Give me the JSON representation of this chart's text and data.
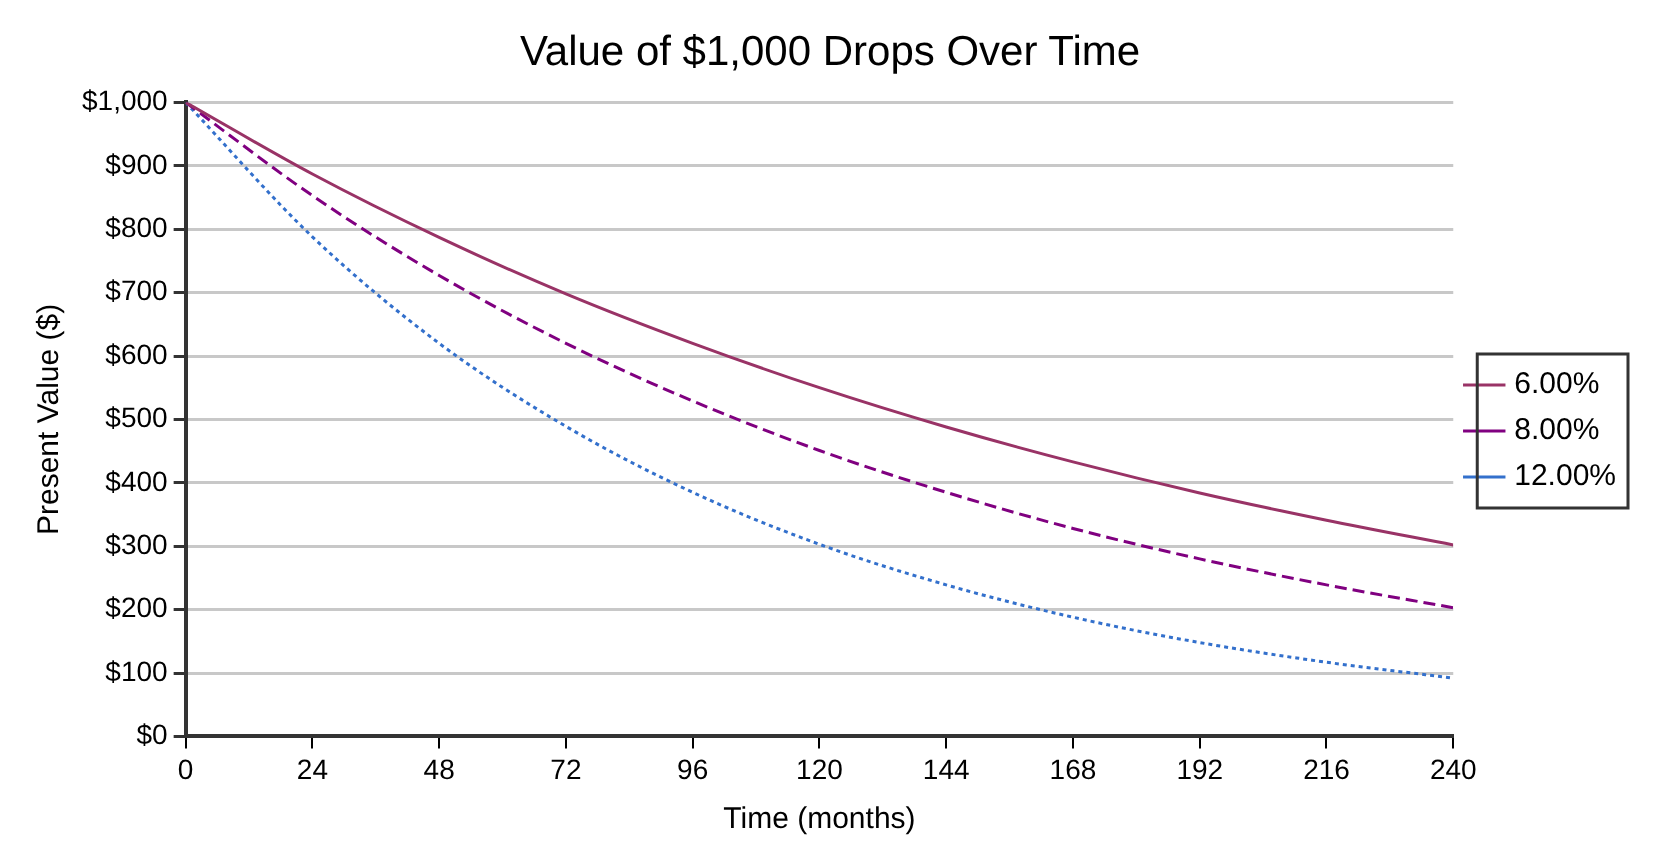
{
  "chart_data": {
    "type": "line",
    "title": "Value of $1,000 Drops Over Time",
    "xlabel": "Time (months)",
    "ylabel": "Present Value ($)",
    "x": [
      0,
      24,
      48,
      72,
      96,
      120,
      144,
      168,
      192,
      216,
      240
    ],
    "series": [
      {
        "name": "6.00%",
        "color": "#993366",
        "line_style": "solid",
        "values": [
          1000,
          887,
          787,
          698,
          620,
          550,
          488,
          433,
          384,
          341,
          302
        ]
      },
      {
        "name": "8.00%",
        "color": "#800080",
        "line_style": "dashed",
        "values": [
          1000,
          853,
          727,
          620,
          529,
          451,
          385,
          328,
          280,
          239,
          203
        ]
      },
      {
        "name": "12.00%",
        "color": "#3370cc",
        "line_style": "dotted",
        "values": [
          1000,
          788,
          620,
          489,
          385,
          303,
          239,
          188,
          148,
          117,
          92
        ]
      }
    ],
    "xlim": [
      0,
      240
    ],
    "xticks": [
      0,
      24,
      48,
      72,
      96,
      120,
      144,
      168,
      192,
      216,
      240
    ],
    "ylim": [
      0,
      1000
    ],
    "yticks": [
      {
        "value": 0,
        "label": "$0"
      },
      {
        "value": 100,
        "label": "$100"
      },
      {
        "value": 200,
        "label": "$200"
      },
      {
        "value": 300,
        "label": "$300"
      },
      {
        "value": 400,
        "label": "$400"
      },
      {
        "value": 500,
        "label": "$500"
      },
      {
        "value": 600,
        "label": "$600"
      },
      {
        "value": 700,
        "label": "$700"
      },
      {
        "value": 800,
        "label": "$800"
      },
      {
        "value": 900,
        "label": "$900"
      },
      {
        "value": 1000,
        "label": "$1,000"
      }
    ],
    "grid": "y",
    "legend": "right",
    "marker": "none"
  }
}
